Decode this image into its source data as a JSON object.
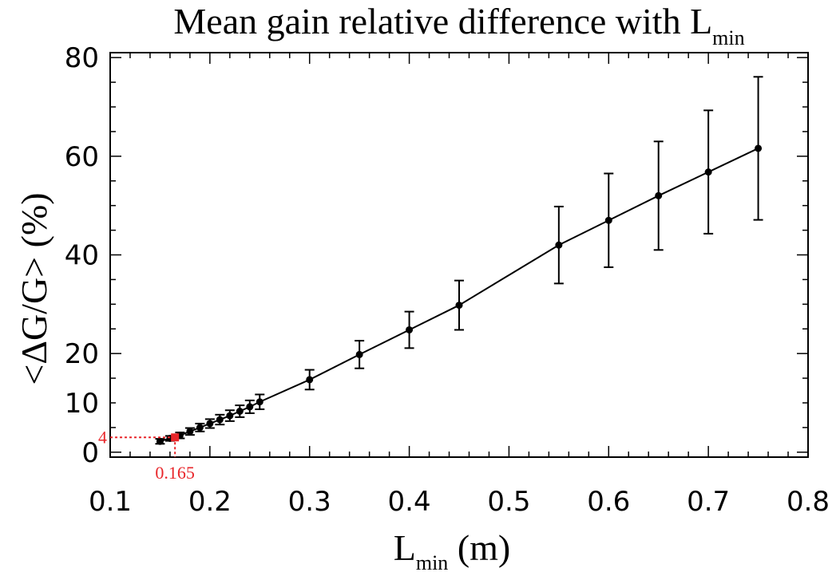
{
  "chart_data": {
    "type": "line",
    "title": "Mean gain relative difference with L",
    "title_subscript": "min",
    "xlabel": "L",
    "xlabel_subscript": "min",
    "xlabel_unit": " (m)",
    "ylabel": "<ΔG/G> (%)",
    "xlim": [
      0.1,
      0.8
    ],
    "ylim": [
      -1,
      81
    ],
    "x_ticks": [
      0.1,
      0.2,
      0.3,
      0.4,
      0.5,
      0.6,
      0.7,
      0.8
    ],
    "x_tick_labels": [
      "0.1",
      "0.2",
      "0.3",
      "0.4",
      "0.5",
      "0.6",
      "0.7",
      "0.8"
    ],
    "y_ticks": [
      0,
      10,
      20,
      40,
      60,
      80
    ],
    "y_tick_labels": [
      "0",
      "10",
      "20",
      "40",
      "60",
      "80"
    ],
    "grid": false,
    "series": [
      {
        "color": "#000000",
        "x": [
          0.15,
          0.16,
          0.17,
          0.18,
          0.19,
          0.2,
          0.21,
          0.22,
          0.23,
          0.24,
          0.25,
          0.3,
          0.35,
          0.4,
          0.45,
          0.55,
          0.6,
          0.65,
          0.7,
          0.75
        ],
        "y": [
          2.2,
          2.8,
          3.4,
          4.2,
          5.0,
          5.8,
          6.6,
          7.4,
          8.3,
          9.2,
          10.2,
          14.7,
          19.8,
          24.8,
          29.8,
          42.0,
          47.0,
          52.0,
          56.8,
          61.6
        ],
        "err": [
          0.5,
          0.5,
          0.6,
          0.7,
          0.8,
          0.9,
          1.0,
          1.1,
          1.2,
          1.3,
          1.5,
          2.0,
          2.8,
          3.7,
          5.0,
          7.8,
          9.5,
          11.0,
          12.5,
          14.5
        ]
      }
    ],
    "annotations": [
      {
        "text": "4",
        "color": "#e8262a",
        "x": 0.165,
        "y": 3.0
      },
      {
        "text": "0.165",
        "color": "#e8262a",
        "x": 0.165,
        "y": 3.0
      }
    ]
  }
}
